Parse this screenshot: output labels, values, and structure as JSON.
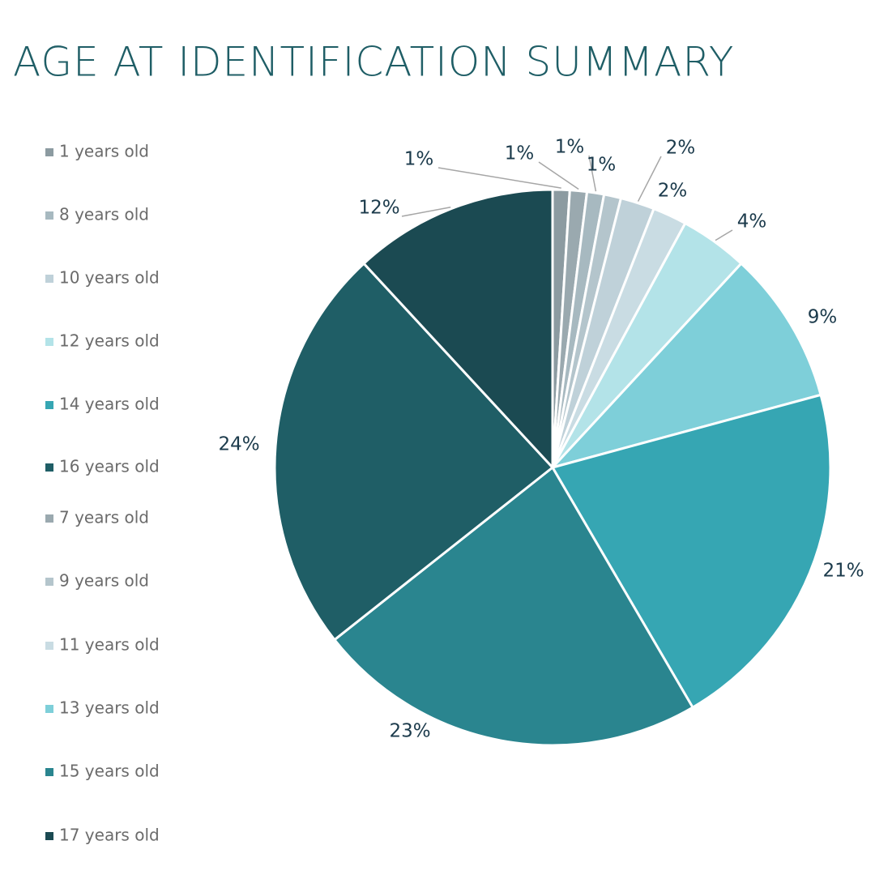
{
  "chart_data": {
    "type": "pie",
    "title": "AGE AT IDENTIFICATION SUMMARY",
    "categories": [
      "1 years old",
      "7 years old",
      "8 years old",
      "9 years old",
      "10 years old",
      "11 years old",
      "12 years old",
      "13 years old",
      "14 years old",
      "15 years old",
      "16 years old",
      "17 years old"
    ],
    "values": [
      1,
      1,
      1,
      1,
      2,
      2,
      4,
      9,
      21,
      23,
      24,
      12
    ],
    "value_labels": [
      "1%",
      "1%",
      "1%",
      "1%",
      "2%",
      "2%",
      "4%",
      "9%",
      "21%",
      "23%",
      "24%",
      "12%"
    ],
    "colors": [
      "#8c9ba1",
      "#9aa9af",
      "#a7b9c0",
      "#b4c5cc",
      "#bfd1d9",
      "#c9dce3",
      "#b3e3e8",
      "#7ecfd9",
      "#36a6b3",
      "#2a858f",
      "#1f5e66",
      "#1b4a52"
    ]
  }
}
